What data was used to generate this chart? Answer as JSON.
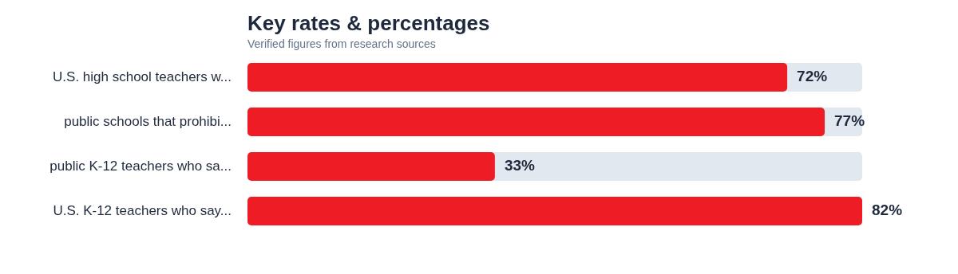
{
  "chart_data": {
    "type": "bar",
    "orientation": "horizontal",
    "title": "Key rates & percentages",
    "subtitle": "Verified figures from research sources",
    "categories": [
      "U.S. high school teachers w...",
      "public schools that prohibi...",
      "public K-12 teachers who sa...",
      "U.S. K-12 teachers who say..."
    ],
    "values": [
      72,
      77,
      33,
      82
    ],
    "color": "#ee1c25",
    "value_labels": [
      "72%",
      "77%",
      "33%",
      "82%"
    ]
  }
}
